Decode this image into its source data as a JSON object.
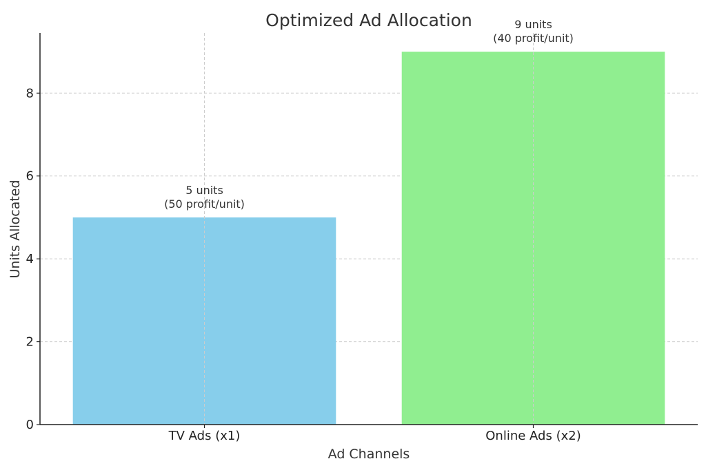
{
  "chart_data": {
    "type": "bar",
    "title": "Optimized Ad Allocation",
    "xlabel": "Ad Channels",
    "ylabel": "Units Allocated",
    "categories": [
      "TV Ads (x1)",
      "Online Ads (x2)"
    ],
    "values": [
      5,
      9
    ],
    "bar_labels": [
      [
        "5 units",
        "(50 profit/unit)"
      ],
      [
        "9 units",
        "(40 profit/unit)"
      ]
    ],
    "colors": [
      "#87ceeb",
      "#90ee90"
    ],
    "ylim": [
      0,
      9.45
    ],
    "yticks": [
      0,
      2,
      4,
      6,
      8
    ],
    "grid": true
  }
}
